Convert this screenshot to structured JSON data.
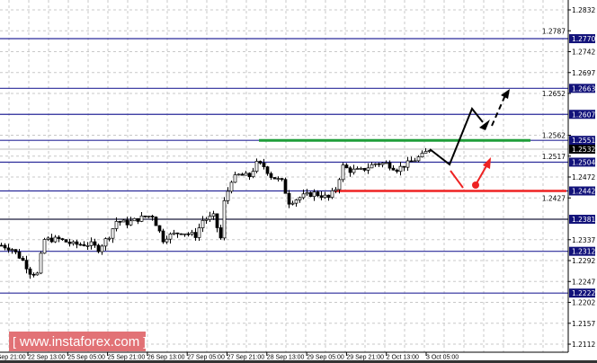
{
  "chart_data": {
    "type": "candlestick",
    "title": "",
    "instrument_hidden": true,
    "y_axis": {
      "ticks": [
        1.2832,
        1.2787,
        1.2742,
        1.2697,
        1.2652,
        1.2562,
        1.2517,
        1.2472,
        1.2427,
        1.2337,
        1.2292,
        1.2247,
        1.2202,
        1.2157,
        1.2112
      ],
      "range": [
        1.2103,
        1.2848
      ]
    },
    "x_axis": {
      "ticks": [
        "21 Sep 21:00",
        "22 Sep 13:00",
        "25 Sep 05:00",
        "25 Sep 21:00",
        "26 Sep 13:00",
        "27 Sep 05:00",
        "27 Sep 21:00",
        "28 Sep 13:00",
        "29 Sep 05:00",
        "29 Sep 21:00",
        "2 Oct 13:00",
        "3 Oct 05:00"
      ]
    },
    "current_price": {
      "label": "1.2532",
      "value": 1.2532,
      "color": "#000000"
    },
    "levels": [
      {
        "label": "1.2770",
        "value": 1.277
      },
      {
        "label": "1.2663",
        "value": 1.2663
      },
      {
        "label": "1.2607",
        "value": 1.2607
      },
      {
        "label": "1.2551",
        "value": 1.2551
      },
      {
        "label": "1.2504",
        "value": 1.2504
      },
      {
        "label": "1.2442",
        "value": 1.2442
      },
      {
        "label": "1.2381",
        "value": 1.2381
      },
      {
        "label": "1.2312",
        "value": 1.2312
      },
      {
        "label": "1.2222",
        "value": 1.2222
      }
    ],
    "resistance_line": {
      "value": 1.2551,
      "color": "#1f9e3a"
    },
    "support_line": {
      "value": 1.2442,
      "color": "#ee2222"
    },
    "close_path": [
      [
        0,
        1.2325
      ],
      [
        3,
        1.2317
      ],
      [
        6,
        1.2292
      ],
      [
        8,
        1.2267
      ],
      [
        10,
        1.2263
      ],
      [
        11,
        1.2302
      ],
      [
        12,
        1.2337
      ],
      [
        16,
        1.2338
      ],
      [
        20,
        1.2327
      ],
      [
        25,
        1.2327
      ],
      [
        27,
        1.2317
      ],
      [
        30,
        1.2346
      ],
      [
        32,
        1.2377
      ],
      [
        35,
        1.2373
      ],
      [
        40,
        1.2387
      ],
      [
        42,
        1.2389
      ],
      [
        45,
        1.2337
      ],
      [
        46,
        1.2344
      ],
      [
        50,
        1.2354
      ],
      [
        54,
        1.2346
      ],
      [
        56,
        1.2379
      ],
      [
        59,
        1.2387
      ],
      [
        61,
        1.234
      ],
      [
        62,
        1.2418
      ],
      [
        64,
        1.2466
      ],
      [
        66,
        1.2476
      ],
      [
        69,
        1.2474
      ],
      [
        71,
        1.2501
      ],
      [
        73,
        1.2495
      ],
      [
        75,
        1.2474
      ],
      [
        78,
        1.2462
      ],
      [
        80,
        1.2418
      ],
      [
        84,
        1.2431
      ],
      [
        87,
        1.2437
      ],
      [
        91,
        1.2427
      ],
      [
        93,
        1.2447
      ],
      [
        95,
        1.2495
      ],
      [
        97,
        1.2486
      ],
      [
        100,
        1.2486
      ],
      [
        104,
        1.2501
      ],
      [
        107,
        1.2501
      ],
      [
        110,
        1.2489
      ],
      [
        114,
        1.2505
      ],
      [
        117,
        1.2518
      ],
      [
        119,
        1.2532
      ]
    ],
    "colors": {
      "level": "#2a2a9a",
      "grid": "#c8c8c8",
      "label_bg": "#12127a",
      "label_text": "#ffffff",
      "candle": "#000000"
    }
  },
  "watermark": {
    "text": "www.instaforex.com",
    "open": "[",
    "close": "]"
  }
}
